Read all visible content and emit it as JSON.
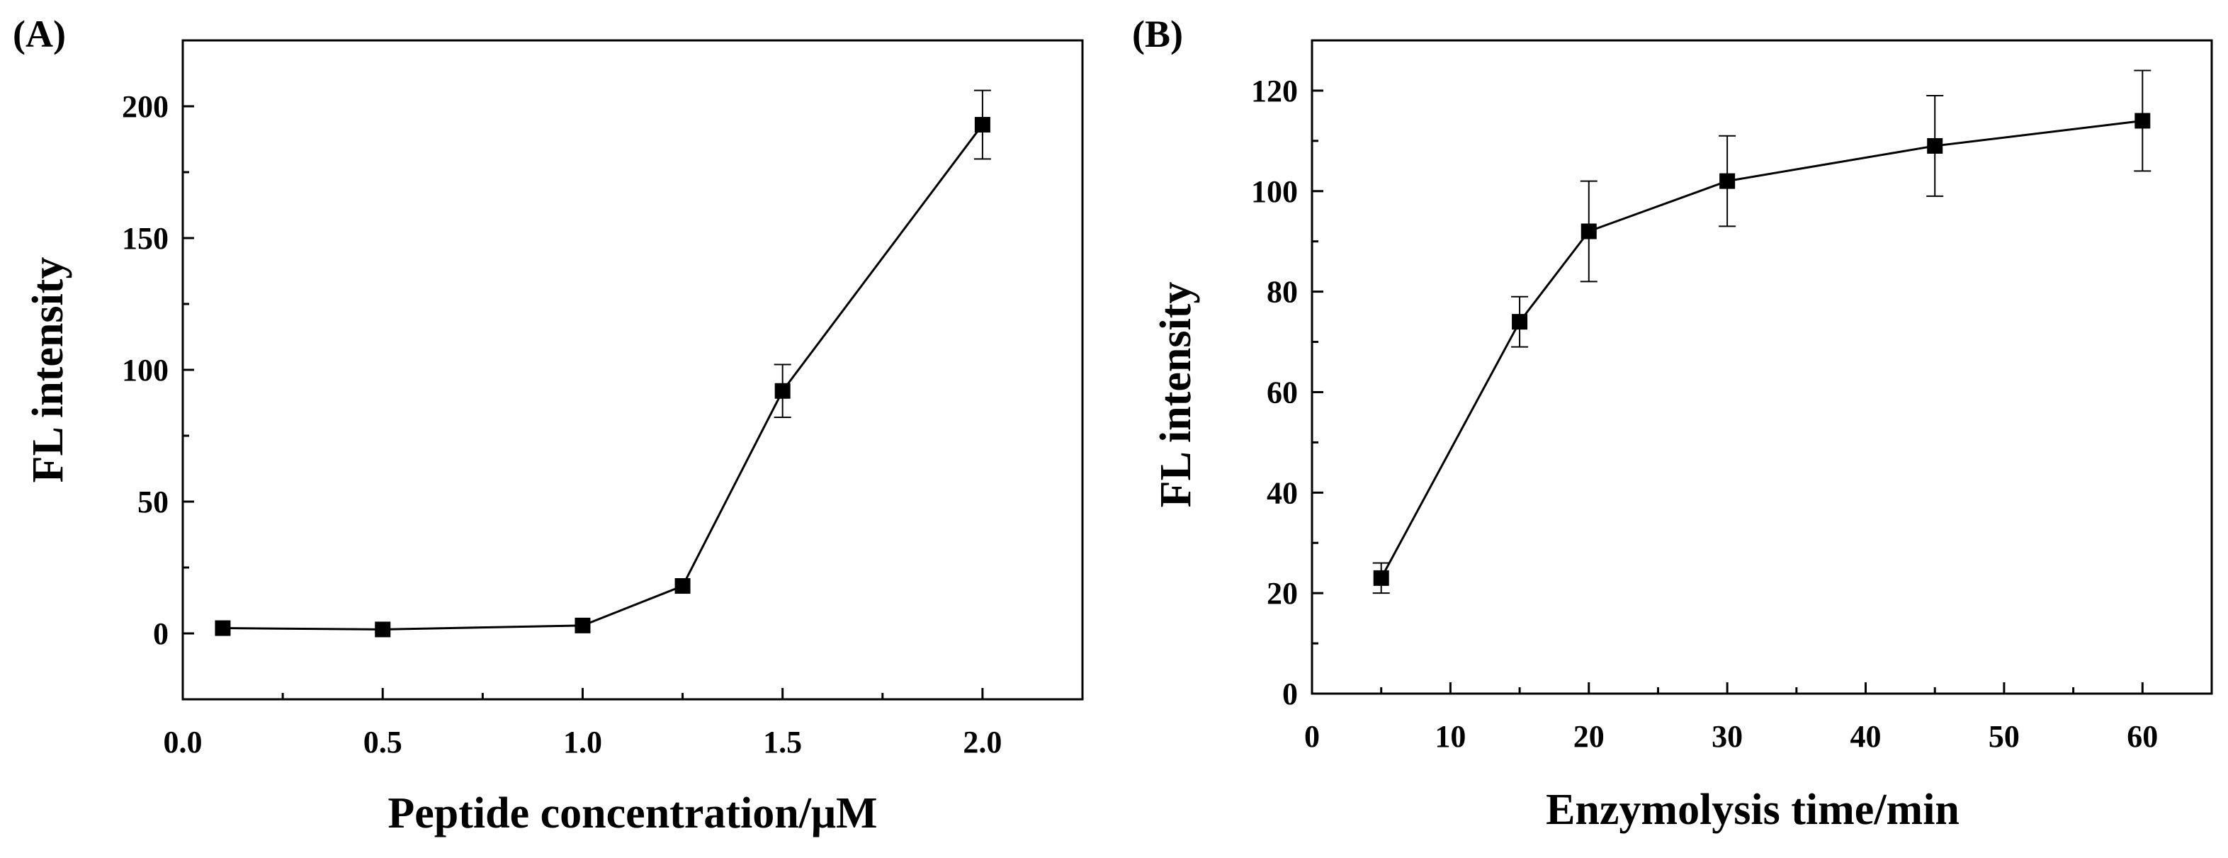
{
  "chart_data": [
    {
      "type": "line",
      "panel_label": "(A)",
      "xlabel": "Peptide concentration/μM",
      "ylabel": "FL intensity",
      "xlim": [
        0.0,
        2.25
      ],
      "ylim": [
        -25,
        225
      ],
      "xticks": [
        0.0,
        0.5,
        1.0,
        1.5,
        2.0
      ],
      "xtick_labels": [
        "0.0",
        "0.5",
        "1.0",
        "1.5",
        "2.0"
      ],
      "yticks": [
        0,
        50,
        100,
        150,
        200
      ],
      "ytick_labels": [
        "0",
        "50",
        "100",
        "150",
        "200"
      ],
      "series": [
        {
          "name": "FL intensity",
          "x": [
            0.1,
            0.5,
            1.0,
            1.25,
            1.5,
            2.0
          ],
          "y": [
            2,
            1.5,
            3,
            18,
            92,
            193
          ],
          "err": [
            0,
            0,
            0,
            0,
            10,
            13
          ]
        }
      ]
    },
    {
      "type": "line",
      "panel_label": "(B)",
      "xlabel": "Enzymolysis time/min",
      "ylabel": "FL intensity",
      "xlim": [
        0,
        65
      ],
      "ylim": [
        0,
        130
      ],
      "xticks": [
        0,
        10,
        20,
        30,
        40,
        50,
        60
      ],
      "xtick_labels": [
        "0",
        "10",
        "20",
        "30",
        "40",
        "50",
        "60"
      ],
      "yticks": [
        0,
        20,
        40,
        60,
        80,
        100,
        120
      ],
      "ytick_labels": [
        "0",
        "20",
        "40",
        "60",
        "80",
        "100",
        "120"
      ],
      "series": [
        {
          "name": "FL intensity",
          "x": [
            5,
            15,
            20,
            30,
            45,
            60
          ],
          "y": [
            23,
            74,
            92,
            102,
            109,
            114
          ],
          "err": [
            3,
            5,
            10,
            9,
            10,
            10
          ]
        }
      ]
    }
  ]
}
